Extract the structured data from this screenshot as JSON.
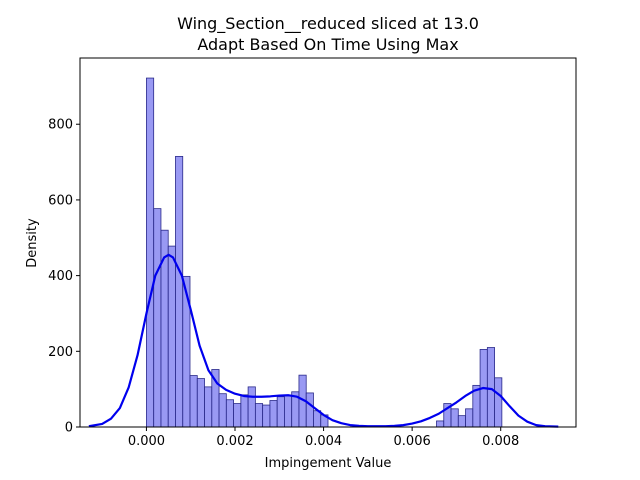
{
  "chart_data": {
    "type": "histogram",
    "title_line1": "Wing_Section__reduced sliced at 13.0",
    "title_line2": "Adapt Based On Time   Using Max",
    "xlabel": "Impingement Value",
    "ylabel": "Density",
    "xlim": [
      -0.0015,
      0.0097
    ],
    "ylim": [
      0,
      975
    ],
    "x_ticks": [
      0.0,
      0.002,
      0.004,
      0.006,
      0.008
    ],
    "x_tick_labels": [
      "0.000",
      "0.002",
      "0.004",
      "0.006",
      "0.008"
    ],
    "y_ticks": [
      0,
      200,
      400,
      600,
      800
    ],
    "y_tick_labels": [
      "0",
      "200",
      "400",
      "600",
      "800"
    ],
    "bin_start": 0.0,
    "bin_width": 0.000164,
    "hist_values": [
      922,
      577,
      520,
      478,
      715,
      398,
      136,
      128,
      106,
      152,
      88,
      72,
      62,
      85,
      106,
      62,
      58,
      70,
      80,
      82,
      93,
      137,
      90,
      43,
      32,
      0,
      0,
      0,
      0,
      0,
      0,
      0,
      0,
      0,
      0,
      0,
      0,
      0,
      0,
      0,
      0,
      0,
      0,
      0,
      0,
      0,
      0,
      0,
      0,
      0,
      0,
      0,
      0,
      0,
      0,
      0,
      0,
      0,
      0,
      0,
      0,
      0,
      0,
      0,
      0,
      0,
      0,
      0,
      0,
      0
    ],
    "hist_values_note": "",
    "hist_values_upper": [
      16,
      62,
      48,
      30,
      48,
      110,
      205,
      210,
      130
    ],
    "hist_upper_start": 0.00655,
    "hist_color": "#8080f0",
    "hist_edge_color": "#2a2a8a",
    "kde_color": "#0000ee",
    "kde": {
      "x": [
        -0.0013,
        -0.001,
        -0.0008,
        -0.0006,
        -0.0004,
        -0.0002,
        0.0,
        0.0002,
        0.0004,
        0.0005,
        0.0006,
        0.0008,
        0.001,
        0.0012,
        0.0014,
        0.0016,
        0.0018,
        0.002,
        0.0022,
        0.0024,
        0.0026,
        0.0028,
        0.003,
        0.0032,
        0.0034,
        0.0036,
        0.0038,
        0.004,
        0.0042,
        0.0044,
        0.0046,
        0.0048,
        0.005,
        0.0052,
        0.0054,
        0.0056,
        0.0058,
        0.006,
        0.0062,
        0.0064,
        0.0066,
        0.0068,
        0.007,
        0.0072,
        0.0074,
        0.0076,
        0.0078,
        0.008,
        0.0082,
        0.0084,
        0.0086,
        0.0088,
        0.009,
        0.0093
      ],
      "y": [
        2,
        8,
        22,
        50,
        105,
        190,
        300,
        400,
        448,
        455,
        448,
        400,
        310,
        215,
        150,
        115,
        98,
        88,
        82,
        80,
        80,
        81,
        83,
        84,
        80,
        68,
        50,
        32,
        18,
        10,
        5,
        3,
        2,
        2,
        2,
        3,
        5,
        9,
        15,
        24,
        35,
        50,
        65,
        82,
        96,
        103,
        100,
        82,
        55,
        30,
        14,
        5,
        2,
        1
      ]
    }
  }
}
